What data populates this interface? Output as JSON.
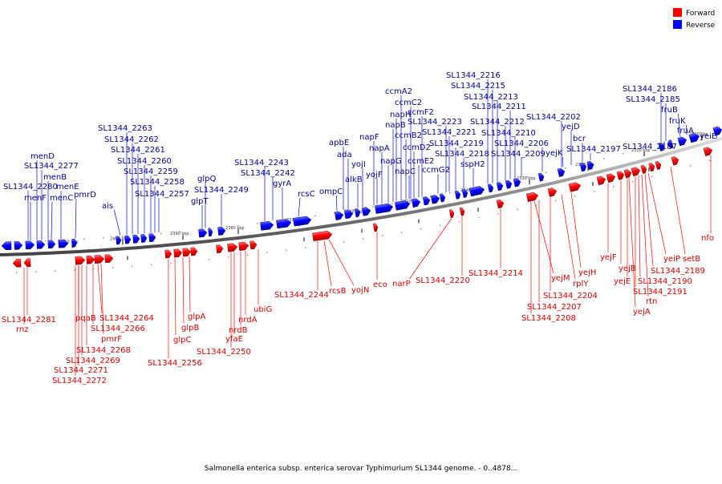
{
  "colors": {
    "forward": "#ff0000",
    "reverse": "#0000ff",
    "forward_label": "#cc0000",
    "reverse_label": "#000088",
    "backbone": "#999999"
  },
  "legend": {
    "forward": "Forward",
    "reverse": "Reverse"
  },
  "caption": "Salmonella enterica subsp. enterica serovar Typhimurium SL1344 genome. - 0..4878...",
  "scale_ticks": [
    "2410 kbp",
    "2400 kbp",
    "2390 kbp",
    "2380 kbp",
    "2370 kbp",
    "2360 kbp",
    "2350 kbp",
    "2340 kbp",
    "2330 kbp",
    "2320 kbp",
    "2310 kbp",
    "2300 kbp"
  ],
  "reverse_genes": [
    "SL1344_2280",
    "menF",
    "menD",
    "SL1344_2277",
    "menB",
    "menC",
    "menE",
    "pmrD",
    "ais",
    "SL1344_2263",
    "SL1344_2262",
    "SL1344_2261",
    "SL1344_2260",
    "SL1344_2259",
    "SL1344_2258",
    "SL1344_2257",
    "glpT",
    "glpQ",
    "SL1344_2249",
    "SL1344_2243",
    "SL1344_2242",
    "gyrA",
    "rcsC",
    "ompC",
    "apbE",
    "ada",
    "alkB",
    "yojI",
    "napF",
    "yojF",
    "napA",
    "napG",
    "napB",
    "napH",
    "ccmA2",
    "ccmB2",
    "ccmC2",
    "ccmD2",
    "ccmE2",
    "ccmF2",
    "napC",
    "ccmG2",
    "SL1344_2223",
    "SL1344_2221",
    "SL1344_2219",
    "SL1344_2218",
    "sspH2",
    "SL1344_2216",
    "SL1344_2215",
    "SL1344_2213",
    "SL1344_2212",
    "SL1344_2211",
    "SL1344_2210",
    "SL1344_2209",
    "SL1344_2206",
    "SL1344_2202",
    "yejK",
    "yejD",
    "bcr",
    "SL1344_2197",
    "SL1344_2187",
    "SL1344_2186",
    "SL1344_2185",
    "fruB",
    "fruK",
    "fruA",
    "yeiE"
  ],
  "forward_genes": [
    "SL1344_2281",
    "rnz",
    "pqaB",
    "SL1344_2264",
    "SL1344_2266",
    "pmrF",
    "SL1344_2268",
    "SL1344_2269",
    "SL1344_2271",
    "SL1344_2272",
    "glpA",
    "glpB",
    "glpC",
    "SL1344_2256",
    "SL1344_2250",
    "yfaE",
    "nrdB",
    "nrdA",
    "ubiG",
    "SL1344_2244",
    "rcsB",
    "yojN",
    "eco",
    "narP",
    "SL1344_2220",
    "SL1344_2214",
    "yejM",
    "SL1344_2204",
    "SL1344_2207",
    "SL1344_2208",
    "rplY",
    "yejH",
    "yejF",
    "yejB",
    "yejE",
    "yeiP",
    "setB",
    "SL1344_2189",
    "SL1344_2190",
    "SL1344_2191",
    "rtn",
    "yejA",
    "nfo"
  ]
}
